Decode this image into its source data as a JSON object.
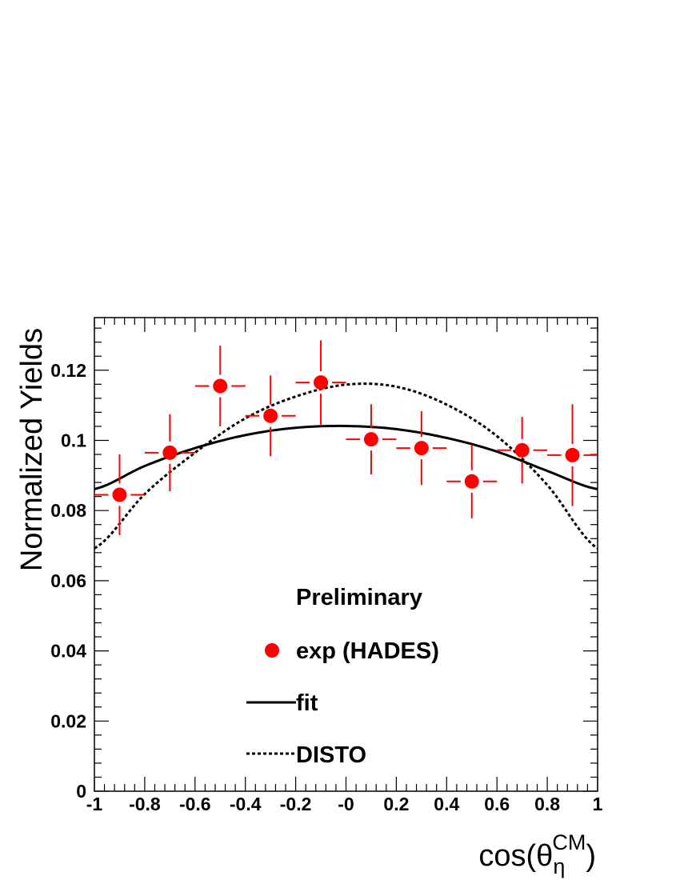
{
  "chart_data": {
    "type": "scatter",
    "title": "",
    "xlabel": "cos(θ_η^CM)",
    "xlabel_parts": {
      "prefix": "cos(θ",
      "sub": "η",
      "sup": "CM",
      "suffix": ")"
    },
    "ylabel": "Normalized Yields",
    "xlim": [
      -1,
      1
    ],
    "ylim": [
      0,
      0.135
    ],
    "x_ticks": [
      "-1",
      "-0.8",
      "-0.6",
      "-0.4",
      "-0.2",
      "-0",
      "0.2",
      "0.4",
      "0.6",
      "0.8",
      "1"
    ],
    "y_ticks": [
      "0",
      "0.02",
      "0.04",
      "0.06",
      "0.08",
      "0.1",
      "0.12"
    ],
    "grid": false,
    "annotation": "Preliminary",
    "series": [
      {
        "name": "exp (HADES)",
        "kind": "points",
        "color": "#ff0000",
        "x": [
          -0.9,
          -0.7,
          -0.5,
          -0.3,
          -0.1,
          0.1,
          0.3,
          0.5,
          0.7,
          0.9
        ],
        "y": [
          0.0845,
          0.0965,
          0.1155,
          0.107,
          0.1165,
          0.1003,
          0.0978,
          0.0883,
          0.0972,
          0.0958
        ],
        "x_err": 0.1,
        "y_err": [
          0.0115,
          0.011,
          0.0115,
          0.0115,
          0.012,
          0.01,
          0.0105,
          0.0105,
          0.0095,
          0.0145
        ]
      },
      {
        "name": "fit",
        "kind": "curve",
        "style": "solid",
        "color": "#000000",
        "x": [
          -1,
          -0.8,
          -0.6,
          -0.4,
          -0.2,
          0,
          0.2,
          0.4,
          0.6,
          0.8,
          1
        ],
        "y": [
          0.0861,
          0.0927,
          0.0978,
          0.1015,
          0.1036,
          0.1041,
          0.1032,
          0.1007,
          0.0968,
          0.0913,
          0.0861
        ]
      },
      {
        "name": "DISTO",
        "kind": "curve",
        "style": "dashed",
        "color": "#000000",
        "x": [
          -1,
          -0.8,
          -0.6,
          -0.4,
          -0.2,
          0,
          0.2,
          0.4,
          0.6,
          0.8,
          1
        ],
        "y": [
          0.0692,
          0.0847,
          0.0965,
          0.1063,
          0.1125,
          0.1159,
          0.1153,
          0.1102,
          0.1012,
          0.0873,
          0.0692
        ]
      }
    ],
    "legend": {
      "placement": "bottom-center",
      "entries": [
        {
          "label": "exp (HADES)",
          "marker": "circle"
        },
        {
          "label": "fit",
          "marker": "line-solid"
        },
        {
          "label": "DISTO",
          "marker": "line-dashed"
        }
      ]
    }
  }
}
